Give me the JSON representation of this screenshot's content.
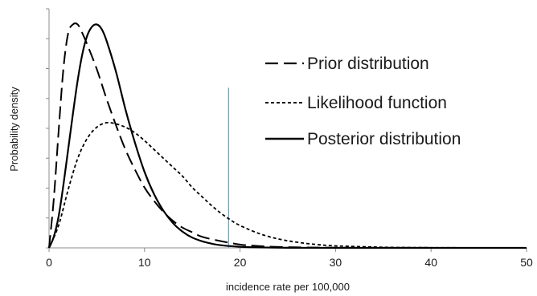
{
  "chart_data": {
    "type": "line",
    "xlabel": "incidence rate per 100,000",
    "ylabel": "Probability density",
    "xlim": [
      0,
      50
    ],
    "x_ticks": [
      0,
      10,
      20,
      30,
      40,
      50
    ],
    "y_tick_count": 8,
    "grid": false,
    "legend_position": "top-right",
    "reference_line": {
      "x": 18.8,
      "y_top_fraction_of_axis": 0.67,
      "color": "#5ba3c4"
    },
    "series": [
      {
        "name": "Prior distribution",
        "dash": "long-dash",
        "color": "#000000",
        "x": [
          0,
          0.5,
          1,
          1.5,
          2,
          2.5,
          3,
          3.5,
          4,
          5,
          6,
          7,
          8,
          9,
          10,
          11,
          12,
          13,
          14,
          15,
          16,
          18,
          20,
          22,
          25,
          30,
          35,
          40,
          45,
          50
        ],
        "y": [
          0,
          0.22,
          0.52,
          0.8,
          0.96,
          1.0,
          1.0,
          0.96,
          0.91,
          0.8,
          0.67,
          0.55,
          0.44,
          0.35,
          0.27,
          0.21,
          0.16,
          0.12,
          0.09,
          0.07,
          0.05,
          0.03,
          0.015,
          0.008,
          0.003,
          0.001,
          0.0005,
          0.0002,
          0.0001,
          0
        ]
      },
      {
        "name": "Likelihood function",
        "dash": "short-dash",
        "color": "#000000",
        "x": [
          0,
          1,
          2,
          3,
          4,
          5,
          6,
          7,
          8,
          9,
          10,
          11,
          12,
          13,
          14,
          15,
          16,
          17,
          18,
          19,
          20,
          22,
          24,
          26,
          28,
          30,
          33,
          36,
          40,
          45,
          50
        ],
        "y": [
          0,
          0.1,
          0.26,
          0.4,
          0.49,
          0.54,
          0.56,
          0.555,
          0.54,
          0.515,
          0.48,
          0.44,
          0.4,
          0.36,
          0.32,
          0.27,
          0.23,
          0.19,
          0.155,
          0.125,
          0.1,
          0.064,
          0.04,
          0.025,
          0.015,
          0.009,
          0.005,
          0.002,
          0.001,
          0.0003,
          0
        ]
      },
      {
        "name": "Posterior distribution",
        "dash": "solid",
        "color": "#000000",
        "x": [
          0,
          0.5,
          1,
          1.5,
          2,
          2.5,
          3,
          3.5,
          4,
          4.5,
          5,
          5.5,
          6,
          7,
          8,
          9,
          10,
          11,
          12,
          13,
          14,
          15,
          16,
          17,
          18,
          20,
          22,
          25,
          30,
          40,
          50
        ],
        "y": [
          0,
          0.05,
          0.14,
          0.28,
          0.44,
          0.6,
          0.75,
          0.87,
          0.95,
          0.99,
          1.0,
          0.98,
          0.93,
          0.79,
          0.62,
          0.47,
          0.34,
          0.24,
          0.165,
          0.11,
          0.072,
          0.046,
          0.03,
          0.019,
          0.012,
          0.005,
          0.002,
          0.0005,
          0.0001,
          0,
          0
        ]
      }
    ]
  }
}
